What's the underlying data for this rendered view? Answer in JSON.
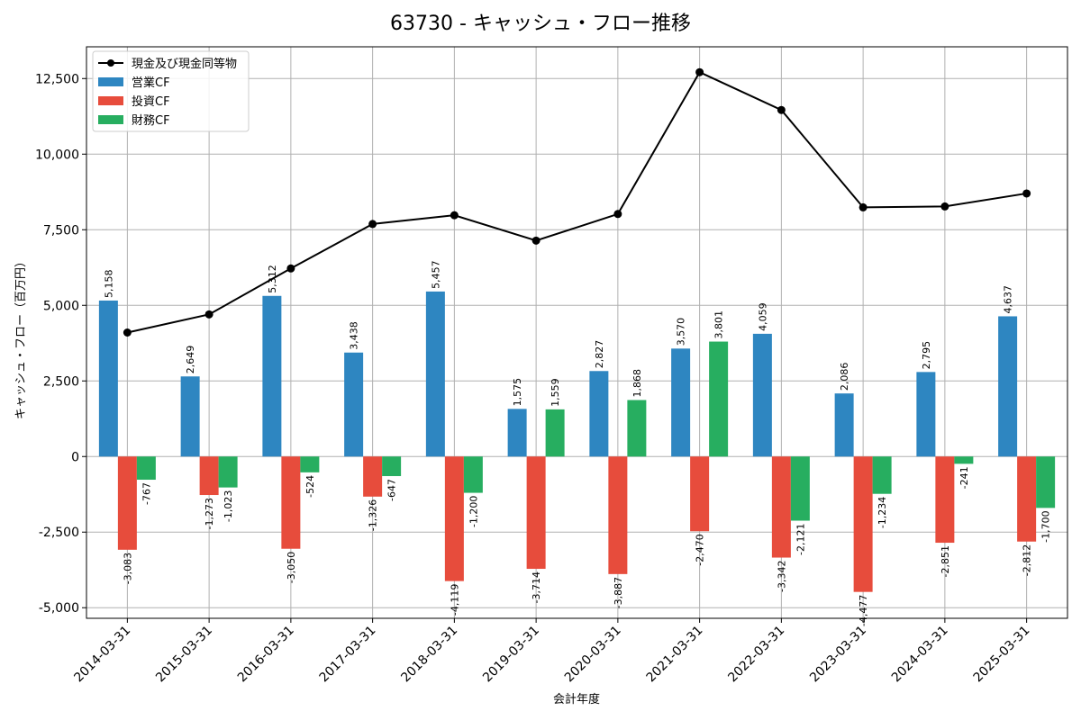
{
  "chart_data": {
    "type": "bar",
    "title": "63730 - キャッシュ・フロー推移",
    "xlabel": "会計年度",
    "ylabel": "キャッシュ・フロー（百万円）",
    "categories": [
      "2014-03-31",
      "2015-03-31",
      "2016-03-31",
      "2017-03-31",
      "2018-03-31",
      "2019-03-31",
      "2020-03-31",
      "2021-03-31",
      "2022-03-31",
      "2023-03-31",
      "2024-03-31",
      "2025-03-31"
    ],
    "ylim": [
      -5350,
      13550
    ],
    "yticks": [
      -5000,
      -2500,
      0,
      2500,
      5000,
      7500,
      10000,
      12500
    ],
    "ytick_labels": [
      "-5,000",
      "-2,500",
      "0",
      "2,500",
      "5,000",
      "7,500",
      "10,000",
      "12,500"
    ],
    "grid": true,
    "legend_position": "top-left",
    "series": [
      {
        "name": "営業CF",
        "kind": "bar",
        "color": "#2e86c1",
        "values": [
          5158,
          2649,
          5312,
          3438,
          5457,
          1575,
          2827,
          3570,
          4059,
          2086,
          2795,
          4637
        ],
        "labels": [
          "5,158",
          "2,649",
          "5,312",
          "3,438",
          "5,457",
          "1,575",
          "2,827",
          "3,570",
          "4,059",
          "2,086",
          "2,795",
          "4,637"
        ]
      },
      {
        "name": "投資CF",
        "kind": "bar",
        "color": "#e74c3c",
        "values": [
          -3083,
          -1273,
          -3050,
          -1326,
          -4119,
          -3714,
          -3887,
          -2470,
          -3342,
          -4477,
          -2851,
          -2812
        ],
        "labels": [
          "-3,083",
          "-1,273",
          "-3,050",
          "-1,326",
          "-4,119",
          "-3,714",
          "-3,887",
          "-2,470",
          "-3,342",
          "-4,477",
          "-2,851",
          "-2,812"
        ]
      },
      {
        "name": "財務CF",
        "kind": "bar",
        "color": "#27ae60",
        "values": [
          -767,
          -1023,
          -524,
          -647,
          -1200,
          1559,
          1868,
          3801,
          -2121,
          -1234,
          -241,
          -1700
        ],
        "labels": [
          "-767",
          "-1,023",
          "-524",
          "-647",
          "-1,200",
          "1,559",
          "1,868",
          "3,801",
          "-2,121",
          "-1,234",
          "-241",
          "-1,700"
        ]
      },
      {
        "name": "現金及び現金同等物",
        "kind": "line",
        "color": "#000000",
        "values": [
          4100,
          4700,
          6220,
          7690,
          7980,
          7140,
          8020,
          12710,
          11460,
          8240,
          8270,
          8700
        ]
      }
    ]
  }
}
